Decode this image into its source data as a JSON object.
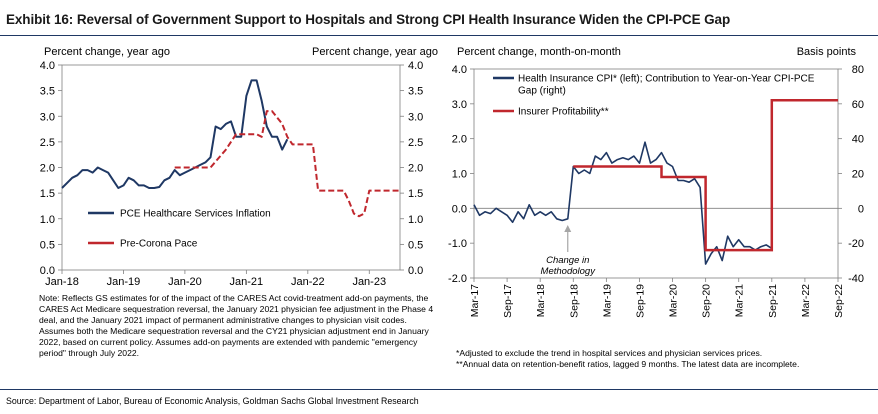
{
  "exhibit_title": "Exhibit 16: Reversal of Government Support to Hospitals and Strong CPI Health Insurance Widen the CPI-PCE Gap",
  "source": "Source: Department of Labor, Bureau of Economic Analysis, Goldman Sachs Global Investment Research",
  "left_note": "Note: Reflects GS estimates for of the impact of the CARES Act covid-treatment add-on payments, the CARES Act Medicare sequestration reversal, the January 2021 physician fee adjustment in the Phase 4 deal, and the January 2021 impact of permanent administrative changes to physician visit codes. Assumes both the Medicare sequestration reversal and the CY21 physician adjustment end in January 2022, based on current policy. Assumes add-on payments are extended with pandemic \"emergency period\" through July 2022.",
  "right_notes": [
    "*Adjusted to exclude the trend in hospital services and physician services prices.",
    "**Annual data on retention-benefit ratios, lagged 9 months. The latest data are incomplete."
  ],
  "colors": {
    "navy": "#1f3864",
    "red": "#c0272d",
    "rule": "#1f3864",
    "axis": "#808080"
  },
  "chart_data": [
    {
      "type": "line",
      "ylabel_left": "Percent change, year ago",
      "ylabel_right": "Percent change, year ago",
      "ylim": [
        0,
        4
      ],
      "yticks": [
        "0.0",
        "0.5",
        "1.0",
        "1.5",
        "2.0",
        "2.5",
        "3.0",
        "3.5",
        "4.0"
      ],
      "xlim": [
        "2018-01",
        "2023-07"
      ],
      "xticks": [
        "Jan-18",
        "Jan-19",
        "Jan-20",
        "Jan-21",
        "Jan-22",
        "Jan-23"
      ],
      "legend_placement": "lower-left",
      "series": [
        {
          "name": "PCE Healthcare Services Inflation",
          "color": "#1f3864",
          "style": "solid",
          "points": [
            [
              "2018-01",
              1.6
            ],
            [
              "2018-02",
              1.7
            ],
            [
              "2018-03",
              1.8
            ],
            [
              "2018-04",
              1.85
            ],
            [
              "2018-05",
              1.95
            ],
            [
              "2018-06",
              1.95
            ],
            [
              "2018-07",
              1.9
            ],
            [
              "2018-08",
              2.0
            ],
            [
              "2018-09",
              1.95
            ],
            [
              "2018-10",
              1.9
            ],
            [
              "2018-11",
              1.75
            ],
            [
              "2018-12",
              1.6
            ],
            [
              "2019-01",
              1.65
            ],
            [
              "2019-02",
              1.8
            ],
            [
              "2019-03",
              1.75
            ],
            [
              "2019-04",
              1.65
            ],
            [
              "2019-05",
              1.65
            ],
            [
              "2019-06",
              1.6
            ],
            [
              "2019-07",
              1.6
            ],
            [
              "2019-08",
              1.62
            ],
            [
              "2019-09",
              1.75
            ],
            [
              "2019-10",
              1.8
            ],
            [
              "2019-11",
              1.95
            ],
            [
              "2019-12",
              1.85
            ],
            [
              "2020-01",
              1.9
            ],
            [
              "2020-02",
              1.95
            ],
            [
              "2020-03",
              2.0
            ],
            [
              "2020-04",
              2.05
            ],
            [
              "2020-05",
              2.1
            ],
            [
              "2020-06",
              2.2
            ],
            [
              "2020-07",
              2.8
            ],
            [
              "2020-08",
              2.75
            ],
            [
              "2020-09",
              2.85
            ],
            [
              "2020-10",
              2.9
            ],
            [
              "2020-11",
              2.6
            ],
            [
              "2020-12",
              2.6
            ],
            [
              "2021-01",
              3.4
            ],
            [
              "2021-02",
              3.7
            ],
            [
              "2021-03",
              3.7
            ],
            [
              "2021-04",
              3.3
            ],
            [
              "2021-05",
              2.8
            ],
            [
              "2021-06",
              2.6
            ],
            [
              "2021-07",
              2.6
            ],
            [
              "2021-08",
              2.35
            ],
            [
              "2021-09",
              2.55
            ]
          ]
        },
        {
          "name": "Pre-Corona Pace",
          "color": "#c0272d",
          "style": "dashed",
          "points": [
            [
              "2019-11",
              2.0
            ],
            [
              "2020-06",
              2.0
            ],
            [
              "2020-09",
              2.35
            ],
            [
              "2020-11",
              2.65
            ],
            [
              "2021-03",
              2.65
            ],
            [
              "2021-04",
              2.6
            ],
            [
              "2021-05",
              3.1
            ],
            [
              "2021-06",
              3.1
            ],
            [
              "2021-08",
              2.85
            ],
            [
              "2021-09",
              2.6
            ],
            [
              "2021-10",
              2.45
            ],
            [
              "2022-02",
              2.45
            ],
            [
              "2022-03",
              1.55
            ],
            [
              "2022-08",
              1.55
            ],
            [
              "2022-09",
              1.35
            ],
            [
              "2022-10",
              1.1
            ],
            [
              "2022-11",
              1.05
            ],
            [
              "2022-12",
              1.1
            ],
            [
              "2023-01",
              1.55
            ],
            [
              "2023-07",
              1.55
            ]
          ]
        }
      ]
    },
    {
      "type": "line",
      "ylabel_left": "Percent change, month-on-month",
      "ylabel_right": "Basis points",
      "ylim_left": [
        -2,
        4
      ],
      "yticks_left": [
        "-2.0",
        "-1.0",
        "0.0",
        "1.0",
        "2.0",
        "3.0",
        "4.0"
      ],
      "ylim_right": [
        -40,
        80
      ],
      "yticks_right": [
        "-40",
        "-20",
        "0",
        "20",
        "40",
        "60",
        "80"
      ],
      "xlim": [
        "2017-03",
        "2022-09"
      ],
      "xticks": [
        "Mar-17",
        "Sep-17",
        "Mar-18",
        "Sep-18",
        "Mar-19",
        "Sep-19",
        "Mar-20",
        "Sep-20",
        "Mar-21",
        "Sep-21",
        "Mar-22",
        "Sep-22"
      ],
      "annotation": "Change in Methodology",
      "annotation_x": "2018-08",
      "legend_placement": "top-left",
      "series": [
        {
          "name": "Health Insurance CPI* (left); Contribution to Year-on-Year CPI-PCE Gap (right)",
          "axis": "left",
          "color": "#1f3864",
          "style": "solid",
          "points": [
            [
              "2017-03",
              0.1
            ],
            [
              "2017-04",
              -0.2
            ],
            [
              "2017-05",
              -0.1
            ],
            [
              "2017-06",
              -0.15
            ],
            [
              "2017-07",
              0.0
            ],
            [
              "2017-08",
              -0.1
            ],
            [
              "2017-09",
              -0.2
            ],
            [
              "2017-10",
              -0.4
            ],
            [
              "2017-11",
              -0.1
            ],
            [
              "2017-12",
              -0.3
            ],
            [
              "2018-01",
              0.1
            ],
            [
              "2018-02",
              -0.2
            ],
            [
              "2018-03",
              -0.1
            ],
            [
              "2018-04",
              -0.2
            ],
            [
              "2018-05",
              -0.1
            ],
            [
              "2018-06",
              -0.3
            ],
            [
              "2018-07",
              -0.35
            ],
            [
              "2018-08",
              -0.3
            ],
            [
              "2018-09",
              1.2
            ],
            [
              "2018-10",
              1.0
            ],
            [
              "2018-11",
              1.1
            ],
            [
              "2018-12",
              1.0
            ],
            [
              "2019-01",
              1.5
            ],
            [
              "2019-02",
              1.4
            ],
            [
              "2019-03",
              1.6
            ],
            [
              "2019-04",
              1.3
            ],
            [
              "2019-05",
              1.4
            ],
            [
              "2019-06",
              1.45
            ],
            [
              "2019-07",
              1.4
            ],
            [
              "2019-08",
              1.5
            ],
            [
              "2019-09",
              1.3
            ],
            [
              "2019-10",
              1.9
            ],
            [
              "2019-11",
              1.3
            ],
            [
              "2019-12",
              1.4
            ],
            [
              "2020-01",
              1.6
            ],
            [
              "2020-02",
              1.3
            ],
            [
              "2020-03",
              1.2
            ],
            [
              "2020-04",
              0.8
            ],
            [
              "2020-05",
              0.8
            ],
            [
              "2020-06",
              0.75
            ],
            [
              "2020-07",
              0.85
            ],
            [
              "2020-08",
              0.6
            ],
            [
              "2020-09",
              -1.6
            ],
            [
              "2020-10",
              -1.3
            ],
            [
              "2020-11",
              -1.1
            ],
            [
              "2020-12",
              -1.5
            ],
            [
              "2021-01",
              -0.8
            ],
            [
              "2021-02",
              -1.1
            ],
            [
              "2021-03",
              -0.9
            ],
            [
              "2021-04",
              -1.1
            ],
            [
              "2021-05",
              -1.1
            ],
            [
              "2021-06",
              -1.2
            ],
            [
              "2021-07",
              -1.1
            ],
            [
              "2021-08",
              -1.05
            ],
            [
              "2021-09",
              -1.15
            ]
          ]
        },
        {
          "name": "Insurer Profitability**",
          "axis": "right",
          "color": "#c0272d",
          "style": "solid",
          "points": [
            [
              "2018-09",
              24
            ],
            [
              "2020-01",
              24
            ],
            [
              "2020-01",
              18
            ],
            [
              "2020-09",
              18
            ],
            [
              "2020-09",
              -24
            ],
            [
              "2021-09",
              -24
            ],
            [
              "2021-09",
              62
            ],
            [
              "2022-09",
              62
            ]
          ]
        }
      ]
    }
  ]
}
